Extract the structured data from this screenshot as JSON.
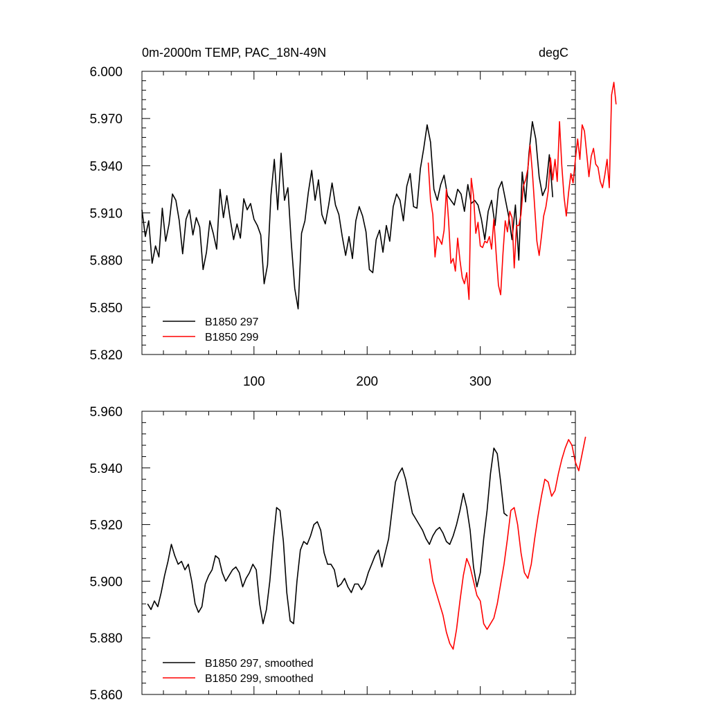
{
  "colors": {
    "black": "#000000",
    "red": "#ff0000"
  },
  "chart_data": [
    {
      "type": "line",
      "title": "0m-2000m TEMP, PAC_18N-49N",
      "units": "degC",
      "xlim": [
        1,
        384
      ],
      "ylim": [
        5.82,
        6.0
      ],
      "x_ticks": [
        100,
        200,
        300
      ],
      "x_tick_labels": [
        "100",
        "200",
        "300"
      ],
      "y_ticks": [
        5.82,
        5.85,
        5.88,
        5.91,
        5.94,
        5.97,
        6.0
      ],
      "y_tick_labels": [
        "5.820",
        "5.850",
        "5.880",
        "5.910",
        "5.940",
        "5.970",
        "6.000"
      ],
      "series": [
        {
          "name": "B1850 297",
          "color": "#000000",
          "x_start": 1,
          "x_step": 3,
          "values": [
            5.912,
            5.895,
            5.905,
            5.878,
            5.889,
            5.882,
            5.913,
            5.892,
            5.903,
            5.922,
            5.918,
            5.905,
            5.884,
            5.906,
            5.912,
            5.896,
            5.907,
            5.901,
            5.874,
            5.885,
            5.905,
            5.897,
            5.887,
            5.925,
            5.907,
            5.921,
            5.906,
            5.893,
            5.903,
            5.894,
            5.919,
            5.912,
            5.916,
            5.906,
            5.902,
            5.896,
            5.865,
            5.877,
            5.921,
            5.944,
            5.912,
            5.948,
            5.918,
            5.926,
            5.891,
            5.862,
            5.849,
            5.897,
            5.905,
            5.923,
            5.937,
            5.918,
            5.931,
            5.909,
            5.903,
            5.915,
            5.929,
            5.915,
            5.909,
            5.895,
            5.883,
            5.895,
            5.881,
            5.905,
            5.914,
            5.908,
            5.898,
            5.874,
            5.872,
            5.893,
            5.899,
            5.885,
            5.902,
            5.892,
            5.914,
            5.922,
            5.918,
            5.905,
            5.927,
            5.935,
            5.914,
            5.913,
            5.938,
            5.951,
            5.966,
            5.955,
            5.925,
            5.918,
            5.928,
            5.934,
            5.921,
            5.918,
            5.915,
            5.925,
            5.922,
            5.911,
            5.928,
            5.916,
            5.918,
            5.915,
            5.906,
            5.893,
            5.911,
            5.918,
            5.902,
            5.925,
            5.93,
            5.919,
            5.908,
            5.893,
            5.915,
            5.88,
            5.936,
            5.917,
            5.948,
            5.968,
            5.957,
            5.933,
            5.921,
            5.926,
            5.947,
            5.92
          ]
        },
        {
          "name": "B1850 299",
          "color": "#ff0000",
          "x_start": 254,
          "x_step": 2,
          "values": [
            5.942,
            5.918,
            5.909,
            5.882,
            5.895,
            5.893,
            5.89,
            5.899,
            5.925,
            5.905,
            5.878,
            5.881,
            5.873,
            5.894,
            5.88,
            5.869,
            5.865,
            5.872,
            5.855,
            5.932,
            5.921,
            5.897,
            5.904,
            5.889,
            5.888,
            5.892,
            5.891,
            5.895,
            5.887,
            5.906,
            5.884,
            5.864,
            5.858,
            5.884,
            5.905,
            5.898,
            5.911,
            5.907,
            5.875,
            5.902,
            5.902,
            5.909,
            5.927,
            5.931,
            5.938,
            5.953,
            5.936,
            5.914,
            5.892,
            5.883,
            5.895,
            5.908,
            5.914,
            5.924,
            5.945,
            5.931,
            5.944,
            5.93,
            5.968,
            5.94,
            5.92,
            5.908,
            5.923,
            5.935,
            5.929,
            5.944,
            5.957,
            5.944,
            5.966,
            5.962,
            5.948,
            5.933,
            5.946,
            5.951,
            5.941,
            5.939,
            5.93,
            5.926,
            5.934,
            5.944,
            5.926,
            5.985,
            5.993,
            5.979
          ]
        }
      ],
      "legend": [
        "B1850 297",
        "B1850 299"
      ],
      "legend_position": "bottom-left"
    },
    {
      "type": "line",
      "title": "",
      "xlim": [
        1,
        384
      ],
      "ylim": [
        5.86,
        5.96
      ],
      "x_ticks": [
        100,
        200,
        300
      ],
      "y_ticks": [
        5.86,
        5.88,
        5.9,
        5.92,
        5.94,
        5.96
      ],
      "y_tick_labels": [
        "5.860",
        "5.880",
        "5.900",
        "5.920",
        "5.940",
        "5.960"
      ],
      "series": [
        {
          "name": "B1850 297, smoothed",
          "color": "#000000",
          "x_start": 6,
          "x_step": 3,
          "values": [
            5.892,
            5.89,
            5.893,
            5.891,
            5.896,
            5.902,
            5.907,
            5.913,
            5.909,
            5.906,
            5.907,
            5.904,
            5.906,
            5.9,
            5.892,
            5.889,
            5.891,
            5.899,
            5.902,
            5.904,
            5.909,
            5.908,
            5.903,
            5.9,
            5.902,
            5.904,
            5.905,
            5.903,
            5.898,
            5.901,
            5.903,
            5.906,
            5.904,
            5.892,
            5.885,
            5.89,
            5.9,
            5.914,
            5.926,
            5.925,
            5.914,
            5.896,
            5.886,
            5.885,
            5.9,
            5.911,
            5.914,
            5.913,
            5.916,
            5.92,
            5.921,
            5.918,
            5.91,
            5.906,
            5.906,
            5.904,
            5.898,
            5.899,
            5.901,
            5.898,
            5.896,
            5.899,
            5.899,
            5.897,
            5.899,
            5.903,
            5.906,
            5.909,
            5.911,
            5.905,
            5.91,
            5.915,
            5.925,
            5.935,
            5.938,
            5.94,
            5.936,
            5.93,
            5.924,
            5.922,
            5.92,
            5.918,
            5.915,
            5.913,
            5.916,
            5.918,
            5.919,
            5.917,
            5.914,
            5.913,
            5.916,
            5.92,
            5.925,
            5.931,
            5.926,
            5.918,
            5.905,
            5.898,
            5.903,
            5.915,
            5.925,
            5.938,
            5.947,
            5.945,
            5.935,
            5.924,
            5.923
          ]
        },
        {
          "name": "B1850 299, smoothed",
          "color": "#ff0000",
          "x_start": 255,
          "x_step": 3,
          "values": [
            5.908,
            5.9,
            5.896,
            5.892,
            5.888,
            5.882,
            5.878,
            5.876,
            5.883,
            5.893,
            5.902,
            5.908,
            5.905,
            5.9,
            5.895,
            5.893,
            5.885,
            5.883,
            5.885,
            5.887,
            5.892,
            5.899,
            5.906,
            5.915,
            5.925,
            5.926,
            5.92,
            5.91,
            5.903,
            5.901,
            5.906,
            5.915,
            5.923,
            5.93,
            5.936,
            5.935,
            5.93,
            5.932,
            5.938,
            5.943,
            5.947,
            5.95,
            5.948,
            5.942,
            5.939,
            5.945,
            5.951
          ]
        }
      ],
      "legend": [
        "B1850 297, smoothed",
        "B1850 299, smoothed"
      ],
      "legend_position": "bottom-left"
    }
  ]
}
